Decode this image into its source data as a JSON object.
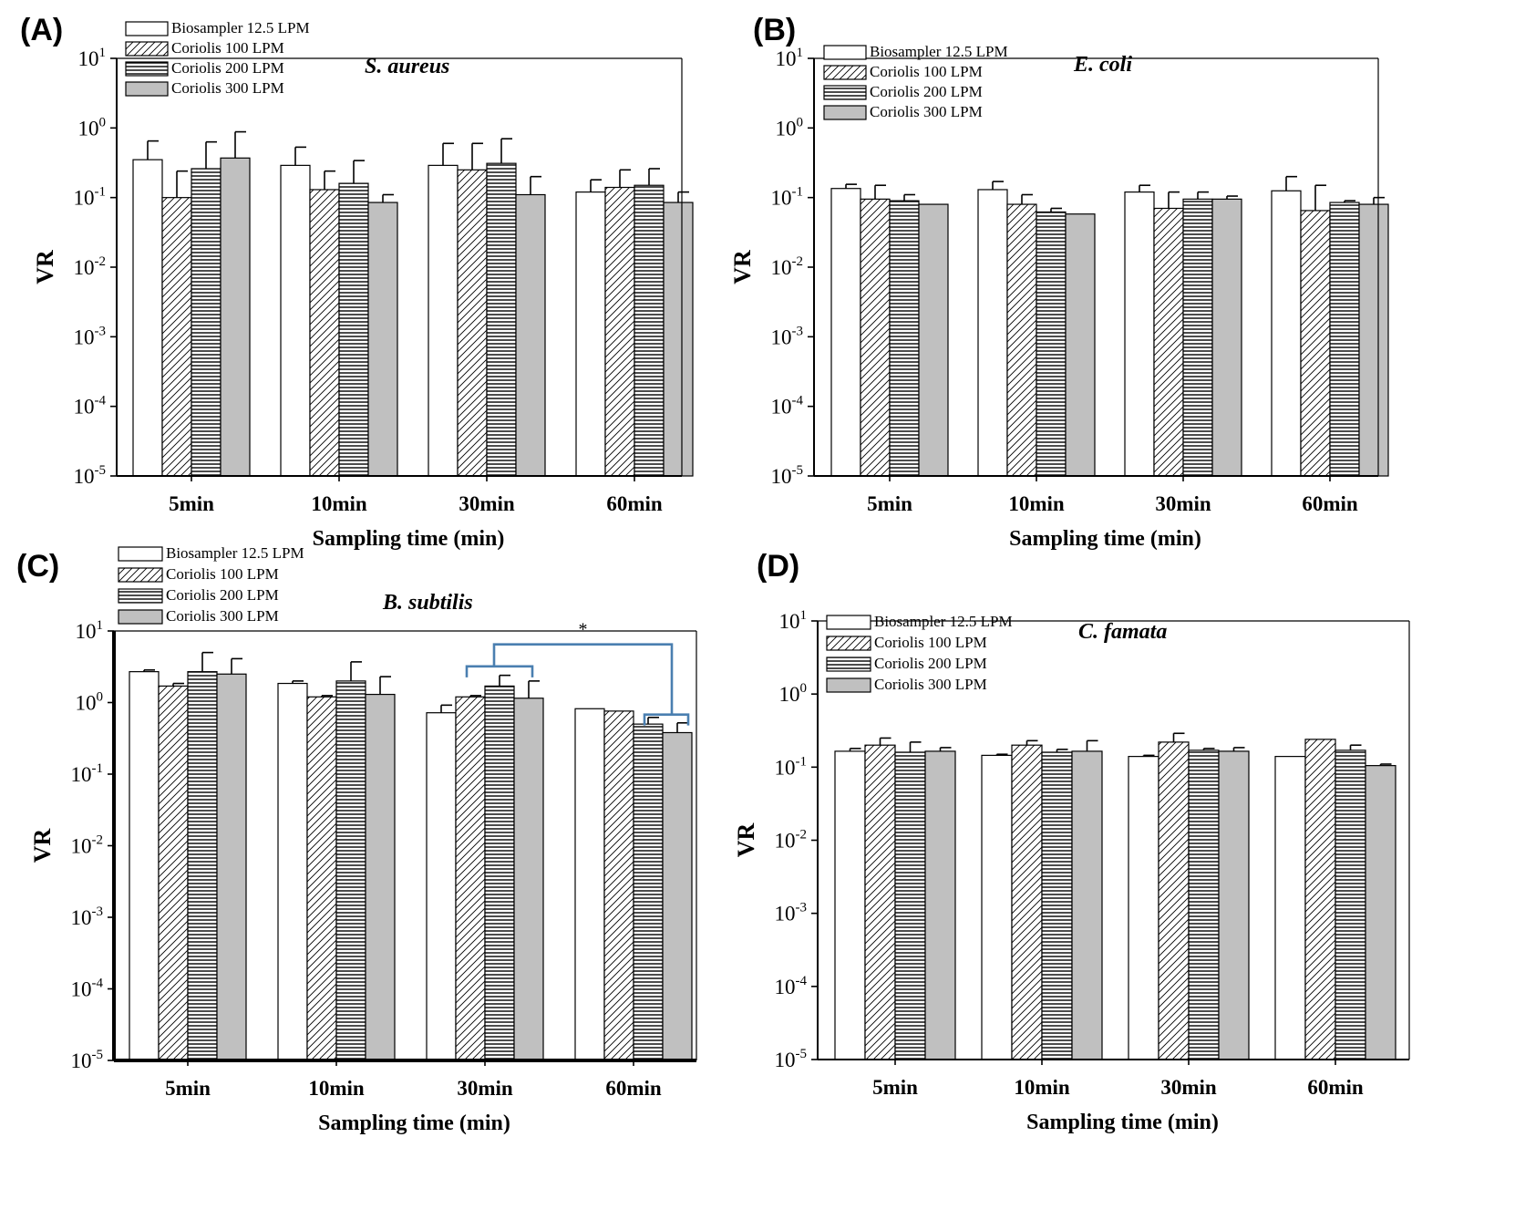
{
  "colors": {
    "axis": "#000000",
    "bar_stroke": "#000000",
    "bar_white": "#ffffff",
    "bar_gray": "#c0c0c0",
    "significance": "#4a7fb0"
  },
  "legend": [
    "Biosampler 12.5 LPM",
    "Coriolis 100 LPM",
    "Coriolis 200 LPM",
    "Coriolis 300 LPM"
  ],
  "chart_data": [
    {
      "panel": "(A)",
      "type": "bar",
      "title": "S. aureus",
      "xlabel": "Sampling time (min)",
      "ylabel": "VR",
      "yscale": "log",
      "ylim": [
        1e-05,
        10
      ],
      "yticks": [
        "10^-5",
        "10^-4",
        "10^-3",
        "10^-2",
        "10^-1",
        "10^0",
        "10^1"
      ],
      "categories": [
        "5min",
        "10min",
        "30min",
        "60min"
      ],
      "series": [
        {
          "name": "Biosampler 12.5 LPM",
          "pattern": "white",
          "values": [
            0.35,
            0.29,
            0.29,
            0.12
          ],
          "errors_upper": [
            0.65,
            0.53,
            0.6,
            0.18
          ]
        },
        {
          "name": "Coriolis 100 LPM",
          "pattern": "hatch",
          "values": [
            0.1,
            0.13,
            0.25,
            0.14
          ],
          "errors_upper": [
            0.24,
            0.24,
            0.6,
            0.25
          ]
        },
        {
          "name": "Coriolis 200 LPM",
          "pattern": "horizontal",
          "values": [
            0.26,
            0.16,
            0.31,
            0.15
          ],
          "errors_upper": [
            0.63,
            0.34,
            0.7,
            0.26
          ]
        },
        {
          "name": "Coriolis 300 LPM",
          "pattern": "gray",
          "values": [
            0.37,
            0.085,
            0.11,
            0.085
          ],
          "errors_upper": [
            0.88,
            0.11,
            0.2,
            0.12
          ]
        }
      ]
    },
    {
      "panel": "(B)",
      "type": "bar",
      "title": "E. coli",
      "xlabel": "Sampling time (min)",
      "ylabel": "VR",
      "yscale": "log",
      "ylim": [
        1e-05,
        10
      ],
      "yticks": [
        "10^-5",
        "10^-4",
        "10^-3",
        "10^-2",
        "10^-1",
        "10^0",
        "10^1"
      ],
      "categories": [
        "5min",
        "10min",
        "30min",
        "60min"
      ],
      "series": [
        {
          "name": "Biosampler 12.5 LPM",
          "pattern": "white",
          "values": [
            0.135,
            0.13,
            0.12,
            0.125
          ],
          "errors_upper": [
            0.155,
            0.17,
            0.15,
            0.2
          ]
        },
        {
          "name": "Coriolis 100 LPM",
          "pattern": "hatch",
          "values": [
            0.095,
            0.08,
            0.07,
            0.065
          ],
          "errors_upper": [
            0.15,
            0.11,
            0.12,
            0.15
          ]
        },
        {
          "name": "Coriolis 200 LPM",
          "pattern": "horizontal",
          "values": [
            0.09,
            0.062,
            0.095,
            0.085
          ],
          "errors_upper": [
            0.11,
            0.07,
            0.12,
            0.09
          ]
        },
        {
          "name": "Coriolis 300 LPM",
          "pattern": "gray",
          "values": [
            0.08,
            0.058,
            0.095,
            0.08
          ],
          "errors_upper": [
            0.082,
            0.058,
            0.105,
            0.1
          ]
        }
      ]
    },
    {
      "panel": "(C)",
      "type": "bar",
      "title": "B. subtilis",
      "xlabel": "Sampling time (min)",
      "ylabel": "VR",
      "yscale": "log",
      "ylim": [
        1e-05,
        10
      ],
      "yticks": [
        "10^-5",
        "10^-4",
        "10^-3",
        "10^-2",
        "10^-1",
        "10^0",
        "10^1"
      ],
      "categories": [
        "5min",
        "10min",
        "30min",
        "60min"
      ],
      "annotations": [
        "*"
      ],
      "series": [
        {
          "name": "Biosampler 12.5 LPM",
          "pattern": "white",
          "values": [
            2.7,
            1.85,
            0.72,
            0.82
          ],
          "errors_upper": [
            2.85,
            2.0,
            0.92,
            0.82
          ]
        },
        {
          "name": "Coriolis 100 LPM",
          "pattern": "hatch",
          "values": [
            1.7,
            1.2,
            1.2,
            0.76
          ],
          "errors_upper": [
            1.85,
            1.25,
            1.25,
            0.78
          ]
        },
        {
          "name": "Coriolis 200 LPM",
          "pattern": "horizontal",
          "values": [
            2.7,
            2.0,
            1.7,
            0.5
          ],
          "errors_upper": [
            5.0,
            3.7,
            2.4,
            0.62
          ]
        },
        {
          "name": "Coriolis 300 LPM",
          "pattern": "gray",
          "values": [
            2.5,
            1.3,
            1.15,
            0.38
          ],
          "errors_upper": [
            4.1,
            2.3,
            2.0,
            0.52
          ]
        }
      ]
    },
    {
      "panel": "(D)",
      "type": "bar",
      "title": "C. famata",
      "xlabel": "Sampling time (min)",
      "ylabel": "VR",
      "yscale": "log",
      "ylim": [
        1e-05,
        10
      ],
      "yticks": [
        "10^-5",
        "10^-4",
        "10^-3",
        "10^-2",
        "10^-1",
        "10^0",
        "10^1"
      ],
      "categories": [
        "5min",
        "10min",
        "30min",
        "60min"
      ],
      "series": [
        {
          "name": "Biosampler 12.5 LPM",
          "pattern": "white",
          "values": [
            0.165,
            0.145,
            0.14,
            0.14
          ],
          "errors_upper": [
            0.18,
            0.15,
            0.145,
            0.14
          ]
        },
        {
          "name": "Coriolis 100 LPM",
          "pattern": "hatch",
          "values": [
            0.2,
            0.2,
            0.22,
            0.24
          ],
          "errors_upper": [
            0.25,
            0.23,
            0.29,
            0.245
          ]
        },
        {
          "name": "Coriolis 200 LPM",
          "pattern": "horizontal",
          "values": [
            0.16,
            0.16,
            0.17,
            0.17
          ],
          "errors_upper": [
            0.22,
            0.175,
            0.18,
            0.2
          ]
        },
        {
          "name": "Coriolis 300 LPM",
          "pattern": "gray",
          "values": [
            0.165,
            0.165,
            0.165,
            0.105
          ],
          "errors_upper": [
            0.185,
            0.23,
            0.185,
            0.11
          ]
        }
      ]
    }
  ]
}
